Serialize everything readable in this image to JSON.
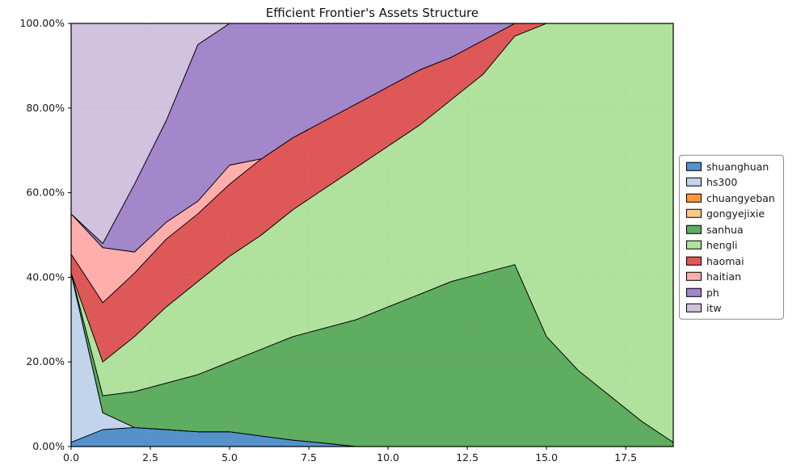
{
  "figure": {
    "background": "#ffffff",
    "grid_color": "#9a9a9a",
    "axis_color": "#000000"
  },
  "chart_data": {
    "type": "area",
    "stacked": true,
    "title": "Efficient Frontier's Assets Structure",
    "xlabel": "",
    "ylabel": "",
    "xlim": [
      0,
      19
    ],
    "ylim": [
      0,
      100
    ],
    "grid": true,
    "legend_position": "center right outside",
    "edge_color": "#000000",
    "x": [
      0,
      1,
      2,
      3,
      4,
      5,
      6,
      7,
      8,
      9,
      10,
      11,
      12,
      13,
      14,
      15,
      16,
      17,
      18,
      19
    ],
    "xticks": [
      0.0,
      2.5,
      5.0,
      7.5,
      10.0,
      12.5,
      15.0,
      17.5
    ],
    "xtick_labels": [
      "0.0",
      "2.5",
      "5.0",
      "7.5",
      "10.0",
      "12.5",
      "15.0",
      "17.5"
    ],
    "yticks": [
      0,
      20,
      40,
      60,
      80,
      100
    ],
    "ytick_labels": [
      "0.00%",
      "20.00%",
      "40.00%",
      "60.00%",
      "80.00%",
      "100.00%"
    ],
    "series": [
      {
        "name": "shuanghuan",
        "color": "#5592cc",
        "values": [
          1,
          4,
          4.5,
          4,
          3.5,
          3.5,
          2.5,
          1.5,
          0.8,
          0,
          0,
          0,
          0,
          0,
          0,
          0,
          0,
          0,
          0,
          0
        ]
      },
      {
        "name": "hs300",
        "color": "#c2d4ec",
        "values": [
          40,
          4,
          0,
          0,
          0,
          0,
          0,
          0,
          0,
          0,
          0,
          0,
          0,
          0,
          0,
          0,
          0,
          0,
          0,
          0
        ]
      },
      {
        "name": "chuangyeban",
        "color": "#ff9a3c",
        "values": [
          0,
          0,
          0,
          0,
          0,
          0,
          0,
          0,
          0,
          0,
          0,
          0,
          0,
          0,
          0,
          0,
          0,
          0,
          0,
          0
        ]
      },
      {
        "name": "gongyejixie",
        "color": "#ffc885",
        "values": [
          0,
          0,
          0,
          0,
          0,
          0,
          0,
          0,
          0,
          0,
          0,
          0,
          0,
          0,
          0,
          0,
          0,
          0,
          0,
          0
        ]
      },
      {
        "name": "sanhua",
        "color": "#5ead60",
        "values": [
          0,
          4,
          8.5,
          11,
          13.5,
          16.5,
          20.5,
          24.5,
          27.2,
          30,
          33,
          36,
          39,
          41,
          43,
          26,
          18,
          12,
          6,
          1
        ]
      },
      {
        "name": "hengli",
        "color": "#b0e29e",
        "values": [
          0,
          8,
          13,
          18,
          22,
          25,
          27,
          30,
          33,
          36,
          38,
          40,
          43,
          47,
          54,
          74,
          82,
          88,
          94,
          99
        ]
      },
      {
        "name": "haomai",
        "color": "#df5858",
        "values": [
          4.5,
          14,
          15,
          16,
          16,
          17,
          18,
          17,
          16,
          15,
          14,
          13,
          10,
          8,
          3,
          0,
          0,
          0,
          0,
          0
        ]
      },
      {
        "name": "haitian",
        "color": "#ffaeac",
        "values": [
          9.5,
          13,
          5,
          4,
          3,
          4.5,
          0,
          0,
          0,
          0,
          0,
          0,
          0,
          0,
          0,
          0,
          0,
          0,
          0,
          0
        ]
      },
      {
        "name": "ph",
        "color": "#a287cb",
        "values": [
          0,
          1,
          16,
          24,
          37,
          33.5,
          32,
          27,
          23,
          19,
          15,
          11,
          8,
          4,
          0,
          0,
          0,
          0,
          0,
          0
        ]
      },
      {
        "name": "itw",
        "color": "#d1c2e0",
        "values": [
          45,
          52,
          38,
          23,
          5,
          0,
          0,
          0,
          0,
          0,
          0,
          0,
          0,
          0,
          0,
          0,
          0,
          0,
          0,
          0
        ]
      }
    ]
  }
}
